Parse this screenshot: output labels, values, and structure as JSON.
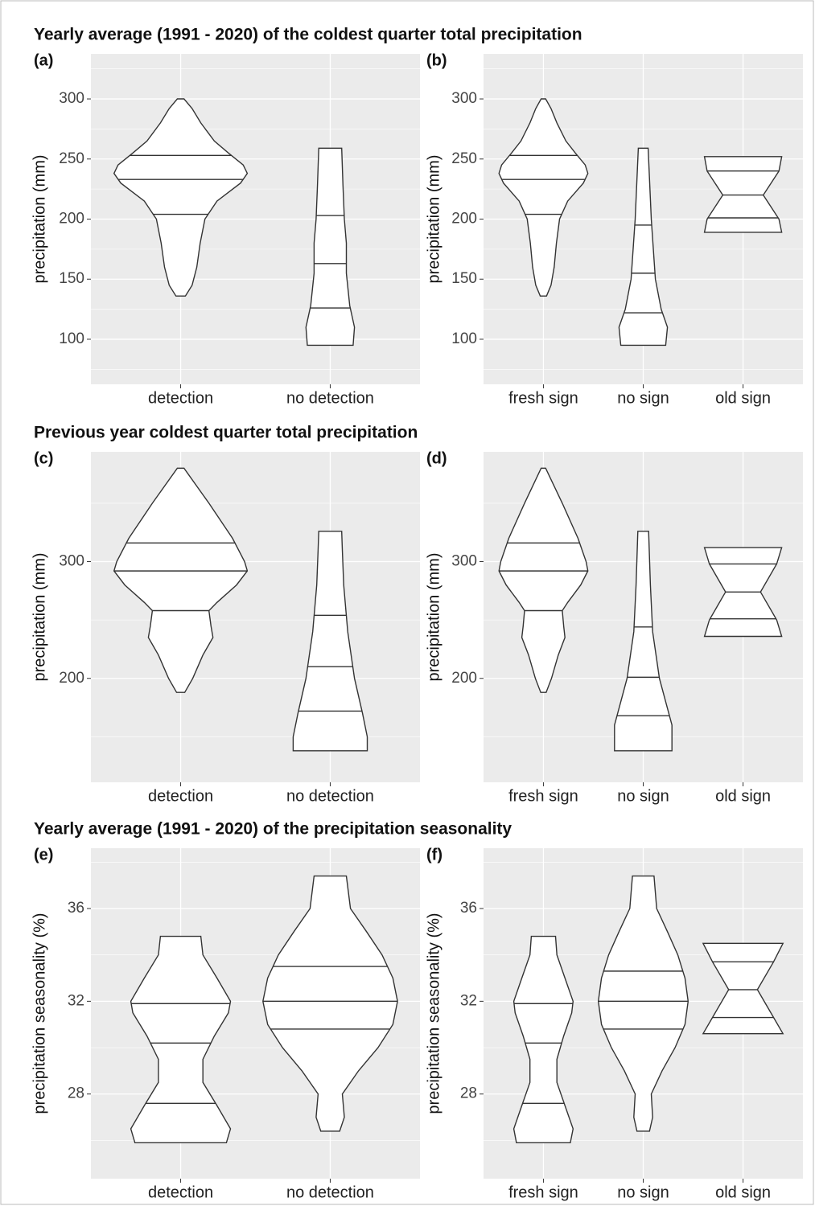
{
  "chart_data": [
    {
      "type": "violin",
      "title": "Yearly average (1991 - 2020) of the coldest quarter total precipitation",
      "label": "(a)",
      "ylabel": "precipitation (mm)",
      "categories": [
        "detection",
        "no detection"
      ],
      "ylim": [
        62.5,
        337.5
      ],
      "yticks": [
        100,
        150,
        200,
        250,
        300
      ],
      "violins": [
        {
          "quantiles": [
            204,
            233,
            253
          ],
          "profile": {
            "y": [
              136,
              145,
              160,
              180,
              200,
              215,
              230,
              238,
              245,
              255,
              265,
              280,
              292,
              300
            ],
            "width": [
              0.07,
              0.17,
              0.24,
              0.29,
              0.36,
              0.54,
              0.89,
              0.99,
              0.93,
              0.71,
              0.5,
              0.3,
              0.17,
              0.05
            ]
          }
        },
        {
          "quantiles": [
            126,
            163,
            203
          ],
          "profile": {
            "y": [
              95,
              110,
              128,
              155,
              180,
              200,
              228,
              259
            ],
            "width": [
              0.34,
              0.36,
              0.29,
              0.24,
              0.24,
              0.21,
              0.19,
              0.17
            ]
          }
        }
      ]
    },
    {
      "type": "violin",
      "label": "(b)",
      "ylabel": "precipitation (mm)",
      "categories": [
        "fresh sign",
        "no sign",
        "old sign"
      ],
      "ylim": [
        62.5,
        337.5
      ],
      "yticks": [
        100,
        150,
        200,
        250,
        300
      ],
      "violins": [
        {
          "quantiles": [
            204,
            233,
            253
          ],
          "profile": {
            "y": [
              136,
              145,
              160,
              180,
              200,
              215,
              230,
              238,
              245,
              255,
              265,
              280,
              292,
              300
            ],
            "width": [
              0.07,
              0.17,
              0.24,
              0.29,
              0.36,
              0.54,
              0.89,
              0.99,
              0.93,
              0.71,
              0.5,
              0.3,
              0.17,
              0.05
            ]
          }
        },
        {
          "quantiles": [
            122,
            155,
            195
          ],
          "profile": {
            "y": [
              95,
              110,
              125,
              150,
              200,
              259
            ],
            "width": [
              0.5,
              0.54,
              0.4,
              0.27,
              0.18,
              0.11
            ]
          }
        },
        {
          "quantiles": [
            201,
            220,
            240
          ],
          "profile": {
            "y": [
              189,
              200,
              220,
              240,
              252
            ],
            "width": [
              0.86,
              0.8,
              0.45,
              0.8,
              0.86
            ]
          }
        }
      ]
    },
    {
      "type": "violin",
      "title": "Previous year coldest quarter total precipitation",
      "label": "(c)",
      "ylabel": "precipitation (mm)",
      "categories": [
        "detection",
        "no detection"
      ],
      "ylim": [
        111,
        394
      ],
      "yticks": [
        200,
        300
      ],
      "violins": [
        {
          "quantiles": [
            258,
            292,
            316
          ],
          "profile": {
            "y": [
              188,
              200,
              220,
              235,
              245,
              258,
              265,
              280,
              292,
              300,
              320,
              350,
              380
            ],
            "width": [
              0.06,
              0.18,
              0.33,
              0.48,
              0.45,
              0.42,
              0.54,
              0.83,
              0.99,
              0.95,
              0.77,
              0.42,
              0.05
            ]
          }
        },
        {
          "quantiles": [
            172,
            210,
            254
          ],
          "profile": {
            "y": [
              138,
              150,
              170,
              200,
              240,
              280,
              310,
              326
            ],
            "width": [
              0.55,
              0.55,
              0.48,
              0.36,
              0.26,
              0.2,
              0.18,
              0.17
            ]
          }
        }
      ]
    },
    {
      "type": "violin",
      "label": "(d)",
      "ylabel": "precipitation (mm)",
      "categories": [
        "fresh sign",
        "no sign",
        "old sign"
      ],
      "ylim": [
        111,
        394
      ],
      "yticks": [
        200,
        300
      ],
      "violins": [
        {
          "quantiles": [
            258,
            292,
            316
          ],
          "profile": {
            "y": [
              188,
              200,
              220,
              235,
              245,
              258,
              265,
              280,
              292,
              300,
              320,
              350,
              380
            ],
            "width": [
              0.06,
              0.18,
              0.33,
              0.48,
              0.45,
              0.42,
              0.54,
              0.83,
              0.99,
              0.95,
              0.77,
              0.42,
              0.05
            ]
          }
        },
        {
          "quantiles": [
            168,
            201,
            244
          ],
          "profile": {
            "y": [
              138,
              160,
              180,
              200,
              240,
              280,
              326
            ],
            "width": [
              0.64,
              0.64,
              0.5,
              0.36,
              0.21,
              0.16,
              0.12
            ]
          }
        },
        {
          "quantiles": [
            251,
            274,
            298
          ],
          "profile": {
            "y": [
              236,
              250,
              274,
              298,
              312
            ],
            "width": [
              0.86,
              0.75,
              0.39,
              0.75,
              0.86
            ]
          }
        }
      ]
    },
    {
      "type": "violin",
      "title": "Yearly average (1991 - 2020) of the precipitation seasonality",
      "label": "(e)",
      "ylabel": "precipitation seasonality (%)",
      "categories": [
        "detection",
        "no detection"
      ],
      "ylim": [
        24.35,
        38.6
      ],
      "yticks": [
        28,
        32,
        36
      ],
      "violins": [
        {
          "quantiles": [
            27.6,
            30.2,
            31.9
          ],
          "profile": {
            "y": [
              25.9,
              26.5,
              27.5,
              28.5,
              29.5,
              30.5,
              31.5,
              32,
              33,
              34,
              34.8
            ],
            "width": [
              0.68,
              0.74,
              0.54,
              0.33,
              0.33,
              0.5,
              0.71,
              0.74,
              0.54,
              0.33,
              0.3
            ]
          }
        },
        {
          "quantiles": [
            30.8,
            32,
            33.5
          ],
          "profile": {
            "y": [
              26.4,
              27,
              28,
              29,
              30,
              31,
              32,
              33,
              34,
              35,
              36,
              37.4
            ],
            "width": [
              0.14,
              0.21,
              0.18,
              0.42,
              0.71,
              0.93,
              1.0,
              0.93,
              0.77,
              0.54,
              0.3,
              0.24
            ]
          }
        }
      ]
    },
    {
      "type": "violin",
      "label": "(f)",
      "ylabel": "precipitation seasonality (%)",
      "categories": [
        "fresh sign",
        "no sign",
        "old sign"
      ],
      "ylim": [
        24.35,
        38.6
      ],
      "yticks": [
        28,
        32,
        36
      ],
      "violins": [
        {
          "quantiles": [
            27.6,
            30.2,
            31.9
          ],
          "profile": {
            "y": [
              25.9,
              26.5,
              27.5,
              28.5,
              29.5,
              30.5,
              31.5,
              32,
              33,
              34,
              34.8
            ],
            "width": [
              0.6,
              0.66,
              0.48,
              0.3,
              0.3,
              0.45,
              0.63,
              0.66,
              0.48,
              0.3,
              0.27
            ]
          }
        },
        {
          "quantiles": [
            30.8,
            32,
            33.3
          ],
          "profile": {
            "y": [
              26.4,
              27,
              28,
              29,
              30,
              31,
              32,
              33,
              34,
              35,
              36,
              37.4
            ],
            "width": [
              0.14,
              0.21,
              0.18,
              0.42,
              0.71,
              0.93,
              1.0,
              0.93,
              0.77,
              0.54,
              0.3,
              0.24
            ]
          }
        },
        {
          "quantiles": [
            31.3,
            32.5,
            33.7
          ],
          "profile": {
            "y": [
              30.6,
              31.3,
              32.5,
              33.7,
              34.5
            ],
            "width": [
              0.89,
              0.68,
              0.32,
              0.68,
              0.89
            ]
          }
        }
      ]
    }
  ]
}
